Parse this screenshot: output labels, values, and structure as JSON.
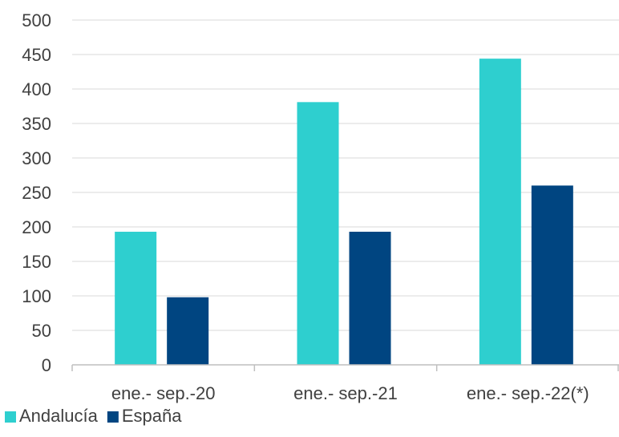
{
  "chart_data": {
    "type": "bar",
    "categories": [
      "ene.- sep.-20",
      "ene.- sep.-21",
      "ene.- sep.-22(*)"
    ],
    "series": [
      {
        "name": "Andalucía",
        "values": [
          193,
          381,
          444
        ],
        "color": "#2ecfcf"
      },
      {
        "name": "España",
        "values": [
          98,
          193,
          260
        ],
        "color": "#004581"
      }
    ],
    "ylim": [
      0,
      500
    ],
    "yticks": [
      0,
      50,
      100,
      150,
      200,
      250,
      300,
      350,
      400,
      450,
      500
    ],
    "grid": true,
    "legend_position": "bottom-left",
    "colors": {
      "grid": "#d9d9d9",
      "axis": "#bfbfbf",
      "text": "#404040"
    }
  }
}
